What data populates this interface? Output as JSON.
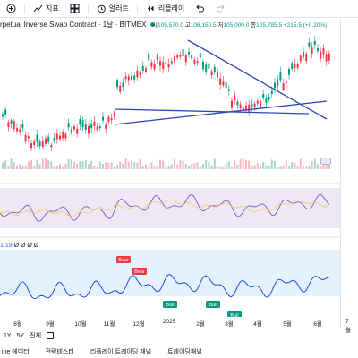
{
  "toolbar": {
    "indicators_label": "지표",
    "alert_label": "얼러트",
    "replay_label": "리플레이"
  },
  "symbol": {
    "title": "rpetual Inverse Swap Contract · 1날 · BITMEX",
    "ohlc": {
      "o_key": "시",
      "o_val": "105,570.0",
      "h_key": "고",
      "h_val": "106,150.5",
      "l_key": "저",
      "l_val": "105,000.0",
      "c_key": "종",
      "c_val": "105,785.5",
      "change": "+215.5 (+0.20%)"
    }
  },
  "indicator": {
    "prefix": "1.19",
    "values": "Ø Ø Ø Ø"
  },
  "signals": {
    "bear": "Bear",
    "bull": "Bull"
  },
  "time_axis": [
    "8월",
    "9월",
    "10월",
    "11월",
    "12월",
    "2025",
    "2월",
    "3월",
    "4월",
    "5월",
    "6월",
    "7월"
  ],
  "range_bar": {
    "one_year": "1Y",
    "five_year": "5Y",
    "all": "전체"
  },
  "bottom_tabs": [
    "ine 에디터",
    "전략테스터",
    "리플레이 트레이딩 패널",
    "트레이딩패널"
  ],
  "colors": {
    "up": "#089981",
    "down": "#f23645",
    "trendline": "#2a48b8",
    "rsi_line": "#7e57c2",
    "rsi_band": "#ede7f6",
    "ind_band": "#e3f2fd",
    "ind_line": "#1e4fd8"
  }
}
